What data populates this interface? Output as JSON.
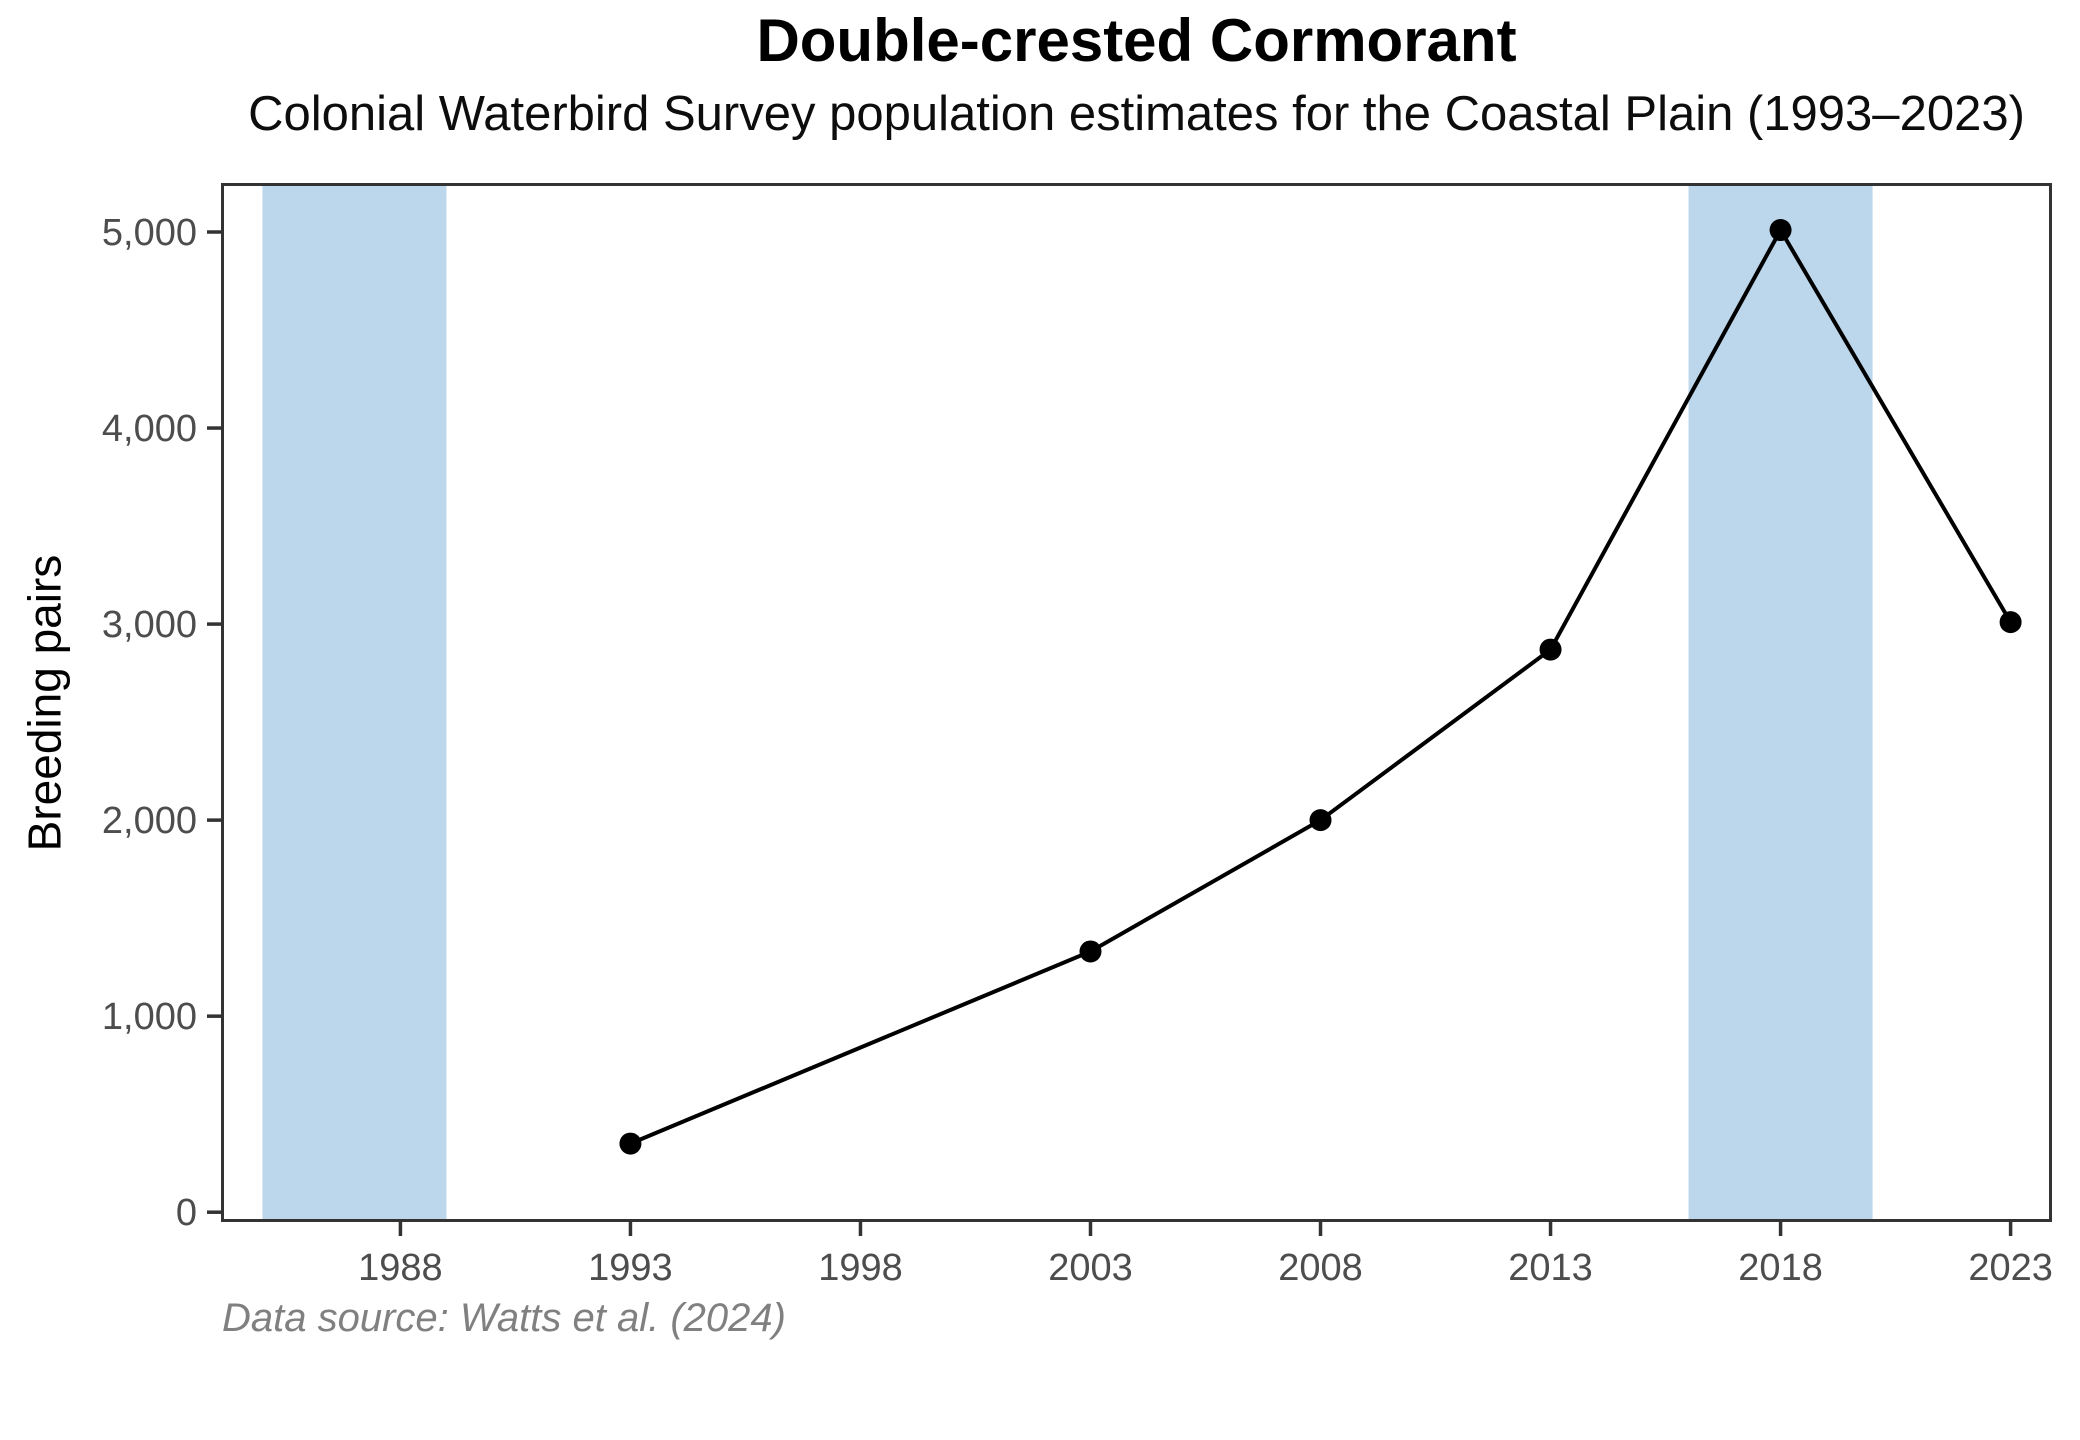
{
  "title": "Double-crested Cormorant",
  "subtitle": "Colonial Waterbird Survey population estimates for the Coastal Plain (1993–2023)",
  "caption": "Data source: Watts et al. (2024)",
  "colors": {
    "band": "#BCD7EC",
    "line": "#000000",
    "point": "#000000",
    "axis_text": "#4D4D4D",
    "panel_border": "#333333",
    "caption_text": "#808080"
  },
  "chart_data": {
    "type": "line",
    "title": "Double-crested Cormorant",
    "subtitle": "Colonial Waterbird Survey population estimates for the Coastal Plain (1993–2023)",
    "caption": "Data source: Watts et al. (2024)",
    "xlabel": "",
    "ylabel": "Breeding pairs",
    "x": [
      1993,
      2003,
      2008,
      2013,
      2018,
      2023
    ],
    "y": [
      350,
      1330,
      2000,
      2870,
      5010,
      3010
    ],
    "series_name": "Breeding pairs",
    "x_ticks": [
      1988,
      1993,
      1998,
      2003,
      2008,
      2013,
      2018,
      2023
    ],
    "y_ticks": [
      0,
      1000,
      2000,
      3000,
      4000,
      5000
    ],
    "y_tick_labels": [
      "0",
      "1,000",
      "2,000",
      "3,000",
      "4,000",
      "5,000"
    ],
    "xlim": [
      1984.1,
      2023.9
    ],
    "ylim": [
      -50,
      5250
    ],
    "highlight_bands": [
      {
        "x0": 1985,
        "x1": 1989
      },
      {
        "x0": 2016,
        "x1": 2020
      }
    ],
    "grid": false,
    "legend": null,
    "point_marker": "filled-circle"
  }
}
